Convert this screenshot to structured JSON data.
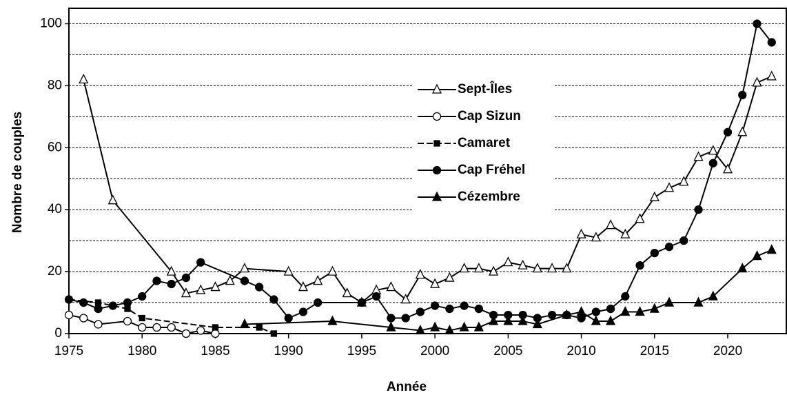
{
  "chart_data": {
    "type": "line",
    "x_label": "Année",
    "y_label": "Nombre de couples",
    "xlim": [
      1975,
      2024
    ],
    "xticks": [
      1975,
      1980,
      1985,
      1990,
      1995,
      2000,
      2005,
      2010,
      2015,
      2020
    ],
    "ylim": [
      0,
      105
    ],
    "yticks": [
      0,
      20,
      40,
      60,
      80,
      100
    ],
    "grid_lines": [
      10,
      30,
      50,
      70,
      90
    ],
    "grid": true,
    "legend": "center",
    "series": [
      {
        "name": "Sept-Îles",
        "color": "#000000",
        "marker": "triangle-open",
        "dashed": false,
        "x": [
          1976,
          1978,
          1982,
          1983,
          1984,
          1985,
          1986,
          1987,
          1990,
          1991,
          1992,
          1993,
          1994,
          1995,
          1996,
          1997,
          1998,
          1999,
          2000,
          2001,
          2002,
          2003,
          2004,
          2005,
          2006,
          2007,
          2008,
          2009,
          2010,
          2011,
          2012,
          2013,
          2014,
          2015,
          2016,
          2017,
          2018,
          2019,
          2020,
          2021,
          2022,
          2023
        ],
        "values": [
          82,
          43,
          20,
          13,
          14,
          15,
          17,
          21,
          20,
          15,
          17,
          20,
          13,
          10,
          14,
          15,
          11,
          19,
          16,
          18,
          21,
          21,
          20,
          23,
          22,
          21,
          21,
          21,
          32,
          31,
          35,
          32,
          37,
          44,
          47,
          49,
          57,
          59,
          53,
          65,
          81,
          83
        ]
      },
      {
        "name": "Cap Sizun",
        "color": "#000000",
        "marker": "circle-open",
        "dashed": false,
        "x": [
          1975,
          1976,
          1977,
          1979,
          1980,
          1981,
          1982,
          1983,
          1984,
          1985
        ],
        "values": [
          6,
          5,
          3,
          4,
          2,
          2,
          2,
          0,
          1,
          0
        ]
      },
      {
        "name": "Camaret",
        "color": "#000000",
        "marker": "square",
        "dashed": true,
        "x": [
          1975,
          1977,
          1979,
          1980,
          1985,
          1988,
          1989
        ],
        "values": [
          11,
          10,
          8,
          5,
          2,
          2,
          0
        ]
      },
      {
        "name": "Cap Fréhel",
        "color": "#000000",
        "marker": "circle",
        "dashed": false,
        "x": [
          1975,
          1976,
          1977,
          1978,
          1979,
          1980,
          1981,
          1982,
          1983,
          1984,
          1987,
          1988,
          1989,
          1990,
          1991,
          1992,
          1995,
          1996,
          1997,
          1998,
          1999,
          2000,
          2001,
          2002,
          2003,
          2004,
          2005,
          2006,
          2007,
          2008,
          2009,
          2010,
          2011,
          2012,
          2013,
          2014,
          2015,
          2016,
          2017,
          2018,
          2019,
          2020,
          2021,
          2022,
          2023
        ],
        "values": [
          11,
          10,
          8,
          9,
          10,
          12,
          17,
          16,
          18,
          23,
          17,
          15,
          11,
          5,
          7,
          10,
          10,
          12,
          5,
          5,
          7,
          9,
          8,
          9,
          8,
          6,
          6,
          6,
          5,
          6,
          6,
          5,
          7,
          8,
          12,
          22,
          26,
          28,
          30,
          40,
          55,
          65,
          77,
          100,
          94
        ]
      },
      {
        "name": "Cézembre",
        "color": "#000000",
        "marker": "triangle",
        "dashed": false,
        "x": [
          1987,
          1993,
          1997,
          1999,
          2000,
          2001,
          2002,
          2003,
          2004,
          2005,
          2006,
          2007,
          2009,
          2010,
          2011,
          2012,
          2013,
          2014,
          2015,
          2016,
          2018,
          2019,
          2021,
          2022,
          2023
        ],
        "values": [
          3,
          4,
          2,
          1,
          2,
          1,
          2,
          2,
          4,
          4,
          4,
          3,
          6,
          7,
          4,
          4,
          7,
          7,
          8,
          10,
          10,
          12,
          21,
          25,
          27
        ]
      }
    ]
  }
}
